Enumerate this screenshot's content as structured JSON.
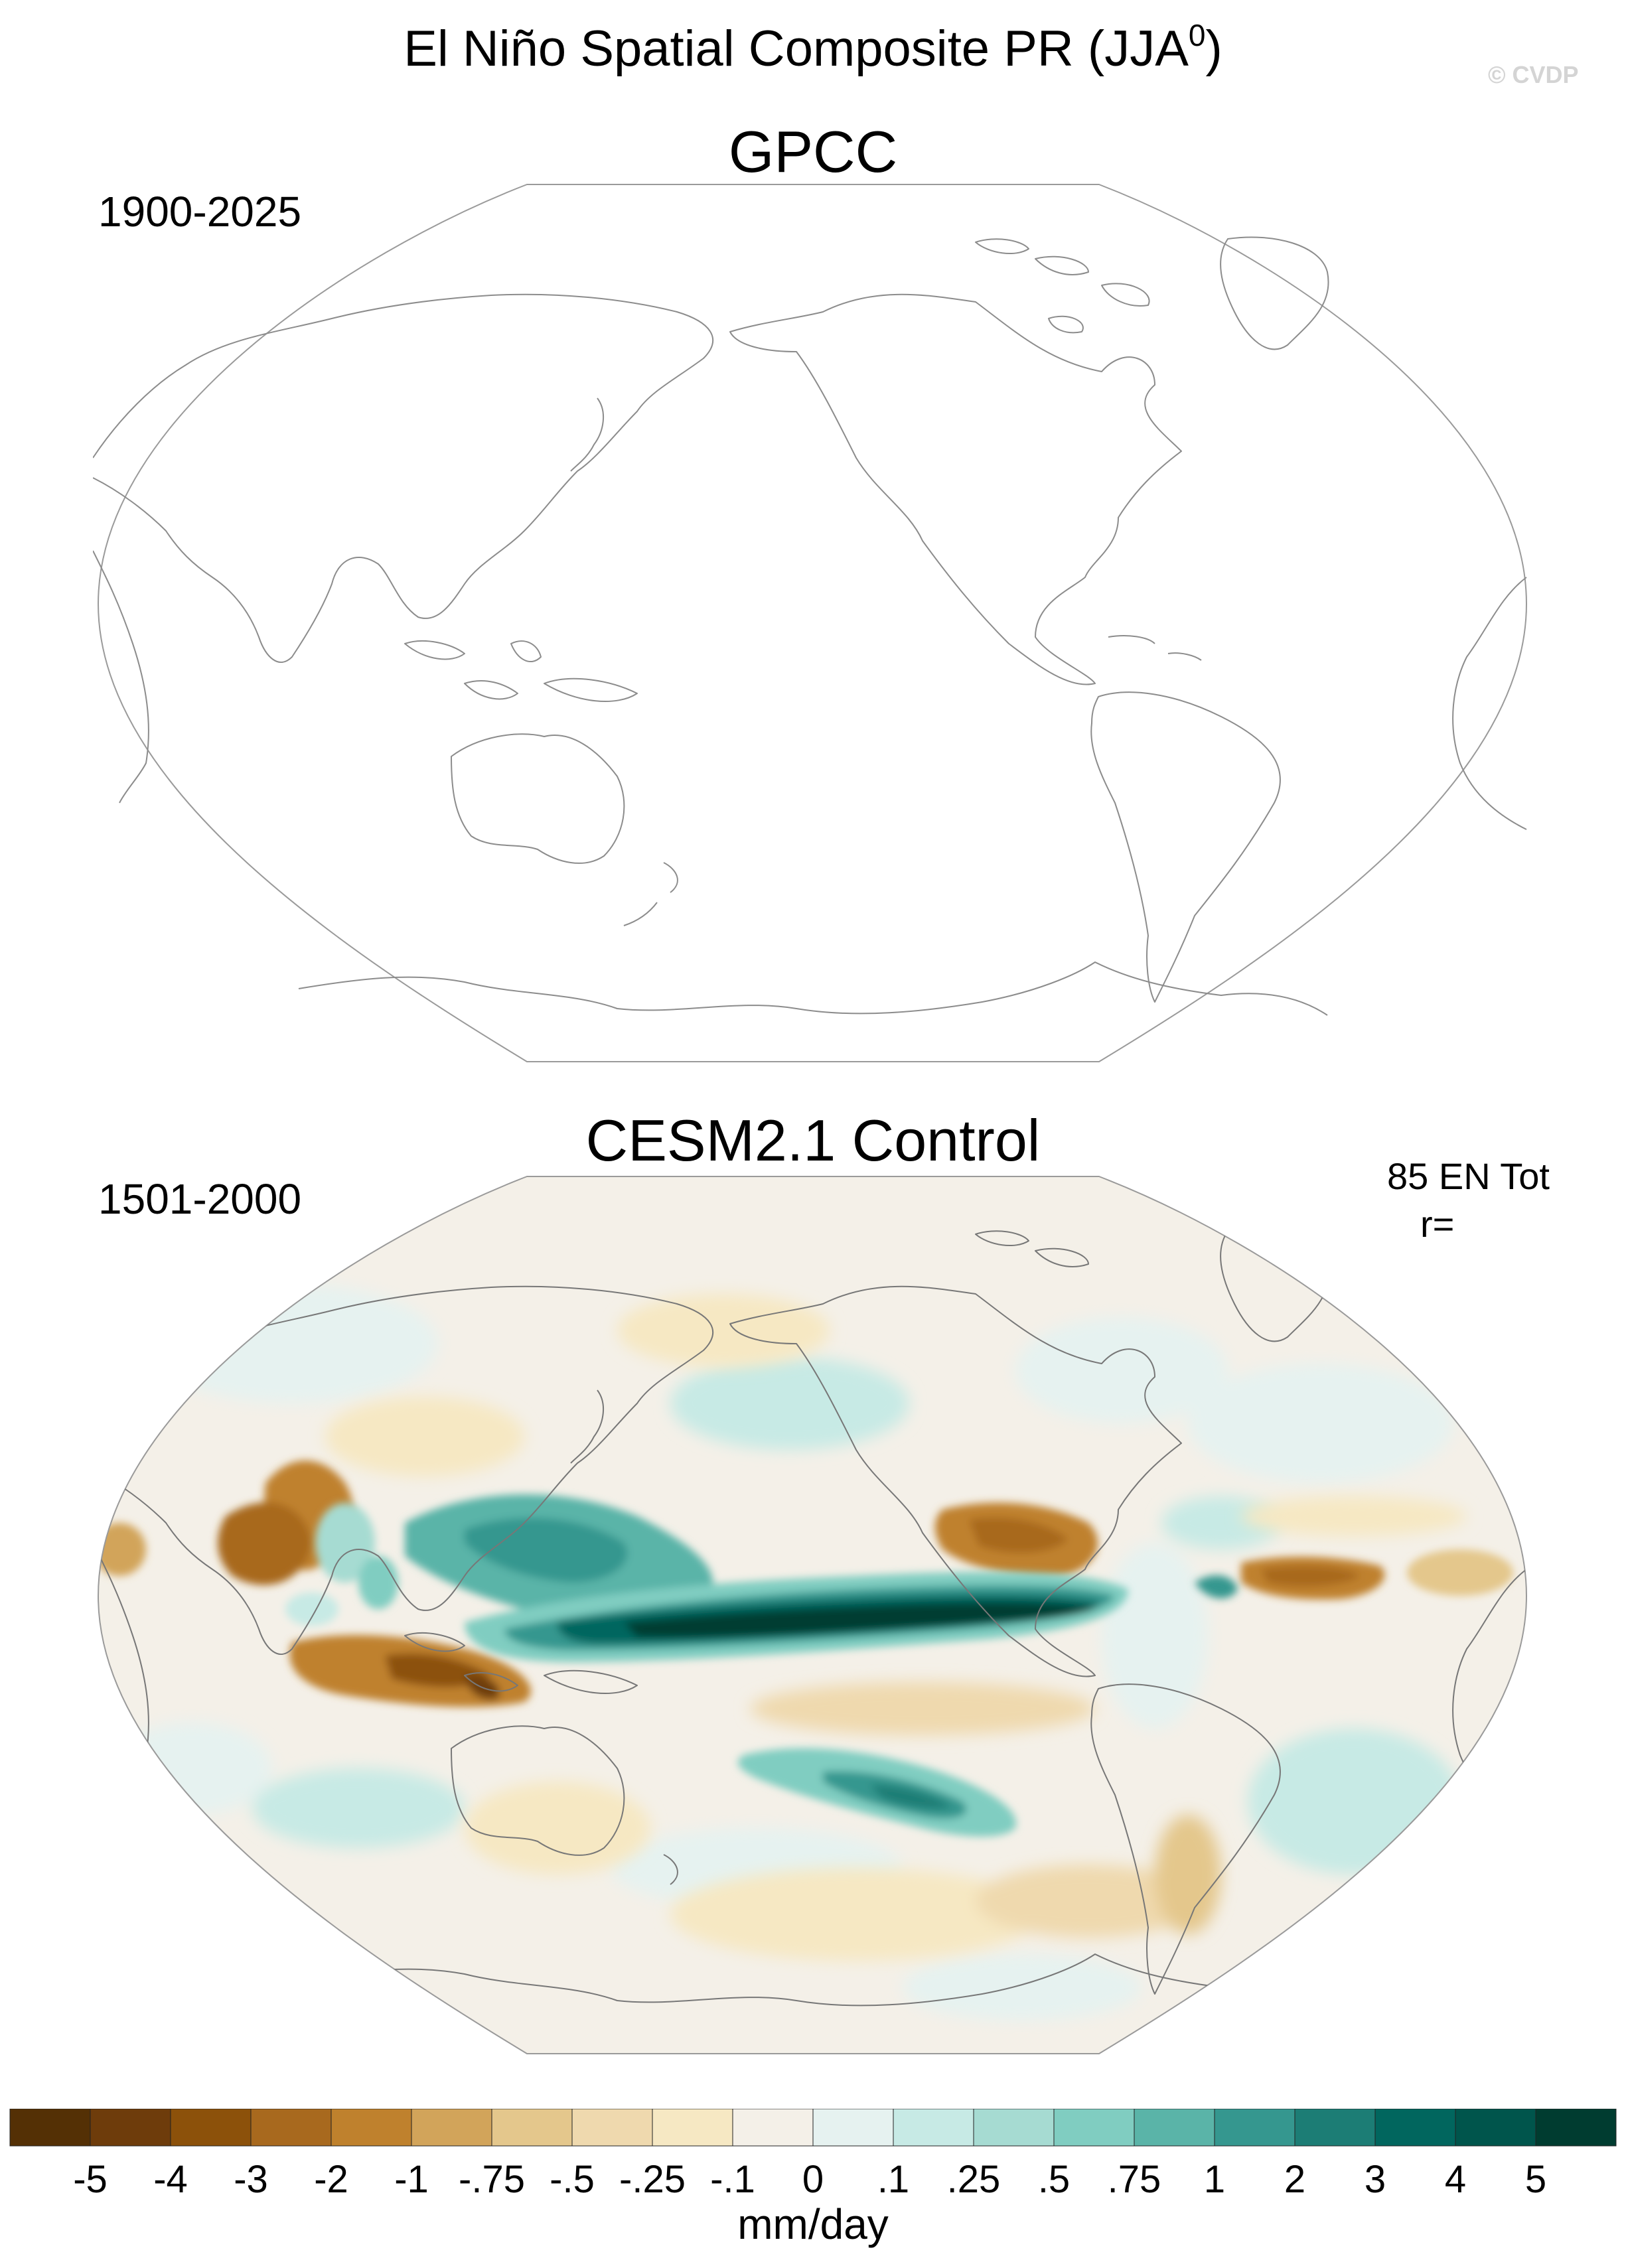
{
  "figure": {
    "title_prefix": "El Niño Spatial Composite PR (JJA",
    "title_superscript": "0",
    "title_suffix": ")",
    "copyright": "© CVDP"
  },
  "panels": [
    {
      "title": "GPCC",
      "period": "1900-2025",
      "projection": "Robinson, Pacific-centered",
      "filled": false
    },
    {
      "title": "CESM2.1 Control",
      "period": "1501-2000",
      "ensemble_count": "85 EN Tot",
      "correlation": "r=",
      "projection": "Robinson, Pacific-centered",
      "filled": true
    }
  ],
  "colorbar": {
    "unit": "mm/day",
    "tick_labels": [
      "-5",
      "-4",
      "-3",
      "-2",
      "-1",
      "-.75",
      "-.5",
      "-.25",
      "-.1",
      "0",
      ".1",
      ".25",
      ".5",
      ".75",
      "1",
      "2",
      "3",
      "4",
      "5"
    ],
    "colors": [
      "#543005",
      "#6e3c0b",
      "#8c510a",
      "#a8691e",
      "#bf812d",
      "#d2a45a",
      "#e4c78c",
      "#efd9ae",
      "#f6e8c3",
      "#f4f0e8",
      "#e6f2f0",
      "#c7eae5",
      "#a6dbd2",
      "#80cdc1",
      "#5ab4a8",
      "#35978f",
      "#1c7d75",
      "#01665e",
      "#00554c",
      "#003c30"
    ]
  }
}
